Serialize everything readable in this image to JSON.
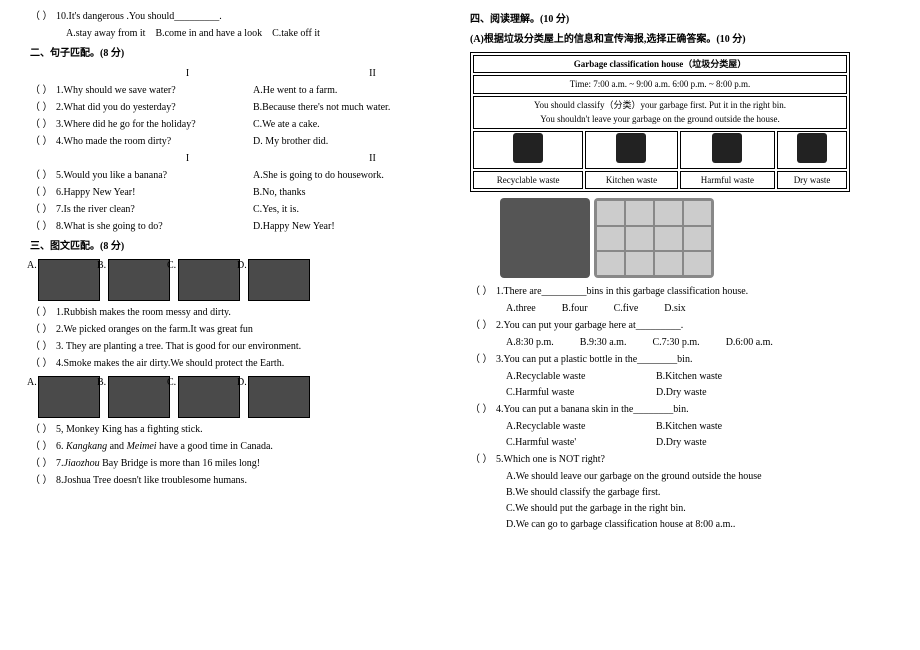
{
  "left": {
    "q10": {
      "stem": "10.It's dangerous .You should_________.",
      "a": "A.stay away from it",
      "b": "B.come in and have a look",
      "c": "C.take off it"
    },
    "s2": {
      "title": "二、句子匹配。(8 分)",
      "h1": "I",
      "h2": "II",
      "rows1": [
        {
          "l": "1.Why should we save water?",
          "r": "A.He went to a farm."
        },
        {
          "l": "2.What did you do yesterday?",
          "r": "B.Because there's not much water."
        },
        {
          "l": "3.Where did he go for the holiday?",
          "r": "C.We ate a cake."
        },
        {
          "l": "4.Who made the room dirty?",
          "r": "D. My brother did."
        }
      ],
      "h3": "I",
      "h4": "II",
      "rows2": [
        {
          "l": "5.Would you like a banana?",
          "r": "A.She is going to do housework."
        },
        {
          "l": "6.Happy New Year!",
          "r": "B.No, thanks"
        },
        {
          "l": "7.Is the river clean?",
          "r": "C.Yes, it is."
        },
        {
          "l": "8.What is she going to do?",
          "r": "D.Happy New Year!"
        }
      ]
    },
    "s3": {
      "title": "三、图文匹配。(8 分)",
      "labels": [
        "A.",
        "B.",
        "C.",
        "D."
      ],
      "q": [
        "1.Rubbish makes the room messy and dirty.",
        "2.We picked oranges on the farm.It was great fun",
        "3. They are planting a tree. That is good for our environment.",
        "4.Smoke makes the air dirty.We should protect the Earth."
      ],
      "labels2": [
        "A.",
        "B.",
        "C.",
        "D."
      ],
      "q2": [
        "5, Monkey King has a fighting stick.",
        "6. Kangkang and Meimei have a good time in Canada.",
        "7.Jiaozhou Bay Bridge is more than 16 miles long!",
        "8.Joshua Tree doesn't like troublesome humans."
      ]
    }
  },
  "right": {
    "s4": {
      "title": "四、阅读理解。(10 分)",
      "sub": "(A)根据垃圾分类屋上的信息和宣传海报,选择正确答案。(10 分)"
    },
    "garbage": {
      "head": "Garbage classification house（垃圾分类屋）",
      "time": "Time: 7:00 a.m. ~ 9:00 a.m.  6:00 p.m. ~ 8:00 p.m.",
      "l1": "You should classify（分类）your garbage first. Put it in the right bin.",
      "l2": "You shouldn't leave your garbage on the ground outside the house.",
      "cats": [
        "Recyclable waste",
        "Kitchen waste",
        "Harmful waste",
        "Dry waste"
      ]
    },
    "rq": {
      "1": {
        "stem": "1.There are_________bins in this garbage classification house.",
        "a": "A.three",
        "b": "B.four",
        "c": "C.five",
        "d": "D.six"
      },
      "2": {
        "stem": "2.You can put your garbage here at_________.",
        "a": "A.8:30 p.m.",
        "b": "B.9:30 a.m.",
        "c": "C.7:30 p.m.",
        "d": "D.6:00 a.m."
      },
      "3": {
        "stem": "3.You can put a plastic bottle in the________bin.",
        "a": "A.Recyclable waste",
        "b": "B.Kitchen waste",
        "c": "C.Harmful waste",
        "d": "D.Dry waste"
      },
      "4": {
        "stem": "4.You can put a banana skin in the________bin.",
        "a": "A.Recyclable waste",
        "b": "B.Kitchen waste",
        "c": "C.Harmful waste'",
        "d": "D.Dry waste"
      },
      "5": {
        "stem": "5.Which one is NOT right?",
        "a": "A.We should leave our garbage on the ground outside the house",
        "b": "B.We should classify the garbage first.",
        "c": "C.We should put the garbage in the right bin.",
        "d": "D.We can go to garbage classification house at 8:00 a.m.."
      }
    }
  },
  "paren": "（    ）"
}
